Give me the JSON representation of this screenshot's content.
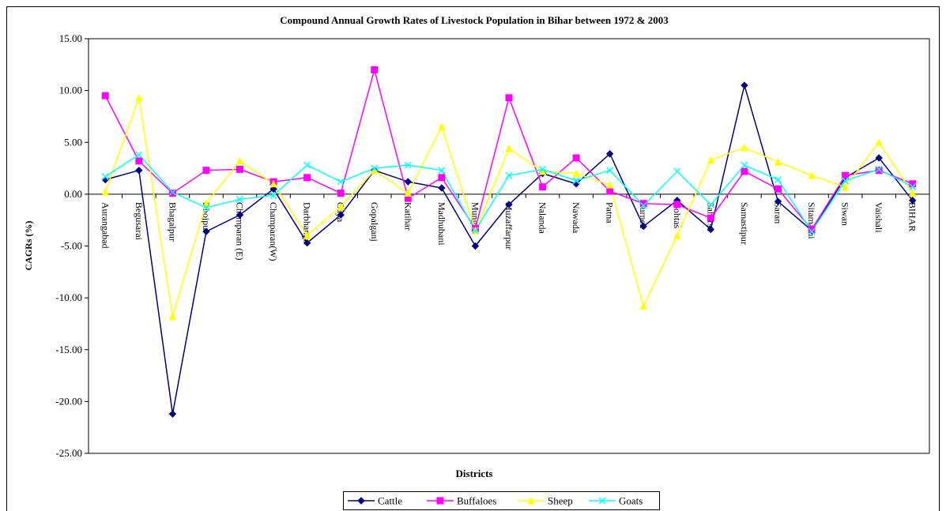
{
  "chart_data": {
    "type": "line",
    "title": "Compound Annual Growth Rates of Livestock Population in Bihar between 1972 & 2003",
    "x_label": "Districts",
    "y_label": "CAGRs (%)",
    "categories": [
      "Aurangabad",
      "Begusarai",
      "Bhagalpur",
      "Bhojpur",
      "Champaran (E)",
      "Champaran(W)",
      "Darbhanga",
      "Gaya",
      "Gopalganj",
      "Katihar",
      "Madhubani",
      "Munger",
      "Muzaffarpur",
      "Nalanda",
      "Nawada",
      "Patna",
      "Purnea",
      "Rohtas",
      "Saharsa",
      "Samastipur",
      "Saran",
      "Sitamarhi",
      "Siwan",
      "Vaishali",
      "BIHAR"
    ],
    "series": [
      {
        "name": "Cattle",
        "color": "#000080",
        "marker": "diamond",
        "values": [
          1.4,
          2.3,
          -21.2,
          -3.6,
          -2.0,
          0.5,
          -4.7,
          -2.0,
          2.3,
          1.2,
          0.6,
          -5.0,
          -1.0,
          2.0,
          1.0,
          3.9,
          -3.1,
          -0.6,
          -3.4,
          10.5,
          -0.7,
          -3.5,
          1.6,
          3.5,
          -0.6
        ]
      },
      {
        "name": "Buffaloes",
        "color": "#FF00FF",
        "marker": "square",
        "values": [
          9.5,
          3.2,
          0.1,
          2.3,
          2.4,
          1.2,
          1.6,
          0.1,
          12.0,
          -0.4,
          1.6,
          -3.3,
          9.3,
          0.7,
          3.5,
          0.3,
          -0.9,
          -1.0,
          -2.3,
          2.2,
          0.5,
          -3.4,
          1.8,
          2.3,
          1.0
        ]
      },
      {
        "name": "Sheep",
        "color": "#FFFF00",
        "marker": "triangle",
        "values": [
          0.2,
          9.3,
          -11.8,
          -0.9,
          3.2,
          1.0,
          -4.0,
          -1.2,
          2.3,
          0.1,
          6.5,
          -3.5,
          4.4,
          2.2,
          2.0,
          0.9,
          -10.8,
          -4.0,
          3.3,
          4.5,
          3.1,
          1.8,
          0.7,
          5.0,
          0.1
        ]
      },
      {
        "name": "Goats",
        "color": "#00FFFF",
        "marker": "x",
        "values": [
          1.7,
          3.8,
          0.2,
          -1.3,
          -0.5,
          -0.1,
          2.8,
          1.2,
          2.5,
          2.8,
          2.3,
          -3.5,
          1.8,
          2.4,
          1.3,
          2.3,
          -1.1,
          2.2,
          -1.0,
          2.8,
          1.4,
          -3.6,
          1.3,
          2.4,
          0.7
        ]
      }
    ],
    "ylim": [
      -25,
      15
    ],
    "yticks": [
      {
        "value": -25,
        "label": "-25.00"
      },
      {
        "value": -20,
        "label": "-20.00"
      },
      {
        "value": -15,
        "label": "-15.00"
      },
      {
        "value": -10,
        "label": "-10.00"
      },
      {
        "value": -5,
        "label": "-5.00"
      },
      {
        "value": 0,
        "label": "0.00"
      },
      {
        "value": 5,
        "label": "5.00"
      },
      {
        "value": 10,
        "label": "10.00"
      },
      {
        "value": 15,
        "label": "15.00"
      }
    ],
    "grid": false,
    "legend": "bottom"
  }
}
